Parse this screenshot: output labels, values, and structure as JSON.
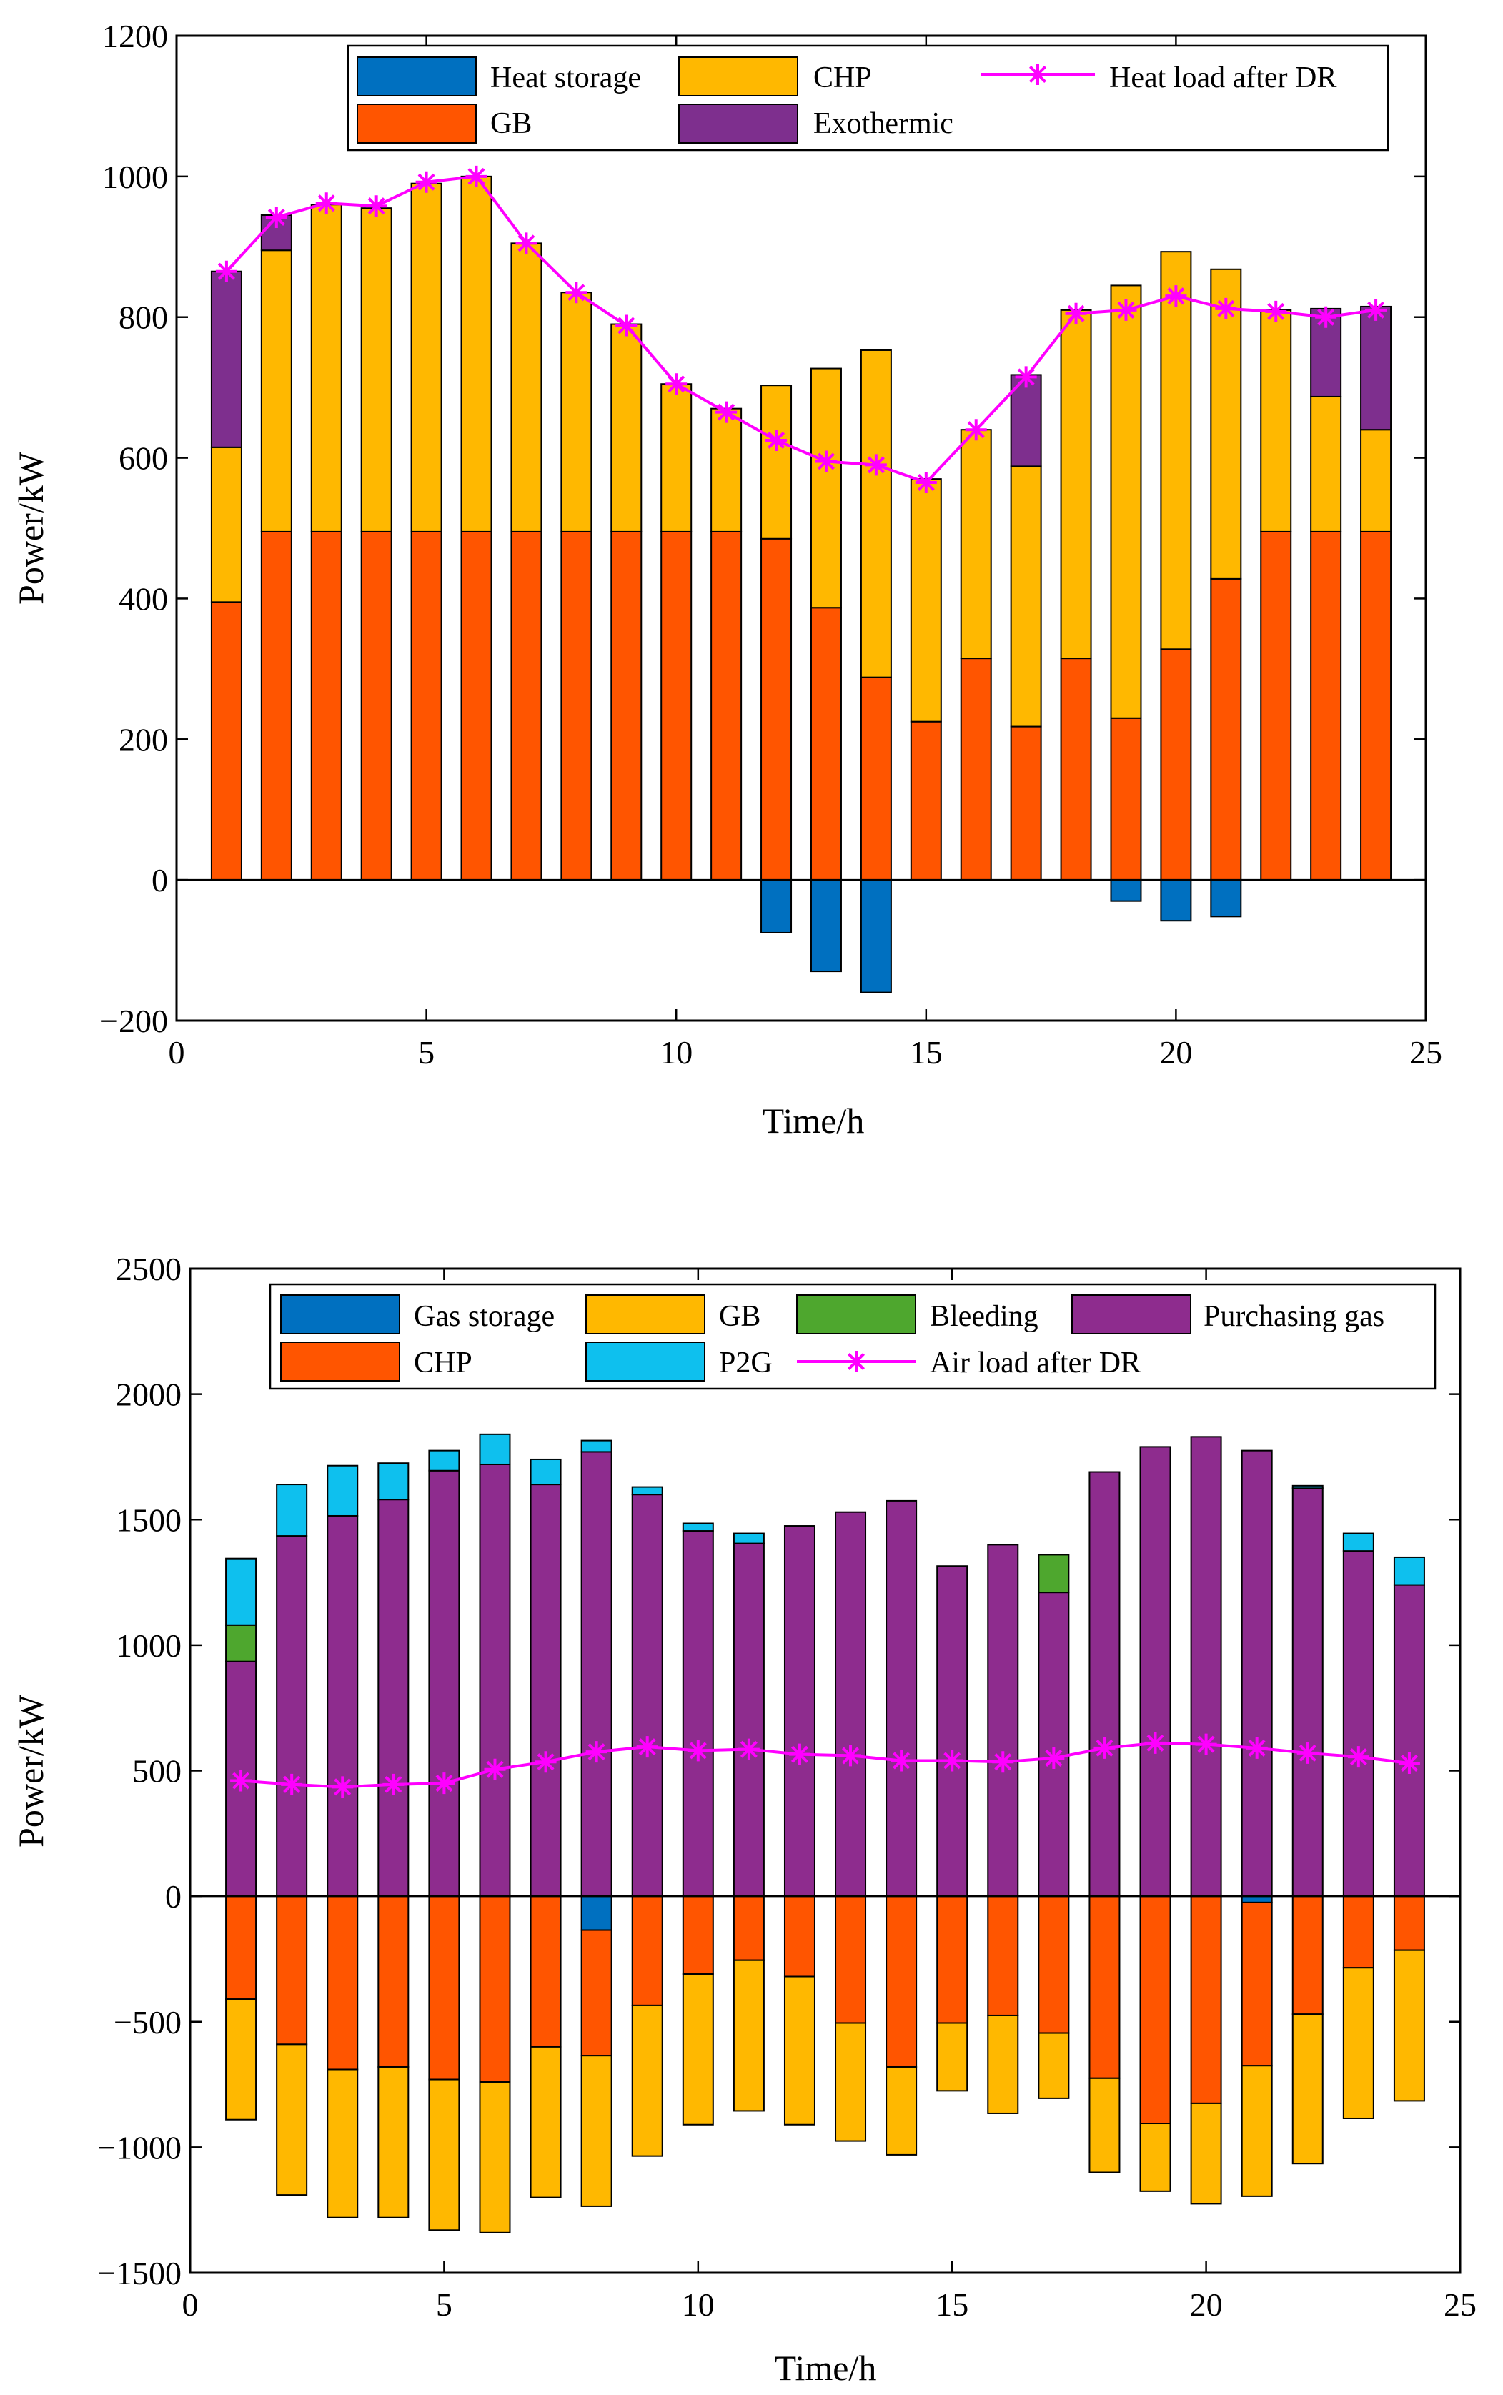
{
  "colors": {
    "heat_storage": "#0070c0",
    "gb_heat": "#ff5500",
    "chp_heat": "#ffb800",
    "exothermic": "#7e2f8e",
    "heat_line": "#ff00ff",
    "gas_storage": "#0070c0",
    "chp_gas": "#ff5500",
    "gb_gas": "#ffb800",
    "p2g": "#0ec0ee",
    "bleeding": "#4ea72e",
    "purchasing": "#8e2c8e",
    "gas_line": "#ff00ff"
  },
  "chart_data": [
    {
      "type": "bar",
      "stacked": true,
      "xlabel": "Time/h",
      "ylabel": "Power/kW",
      "xlim": [
        0,
        25
      ],
      "ylim": [
        -200,
        1200
      ],
      "xticks": [
        "0",
        "5",
        "10",
        "15",
        "20",
        "25"
      ],
      "yticks": [
        "−200",
        "0",
        "200",
        "400",
        "600",
        "800",
        "1000",
        "1200"
      ],
      "categories": [
        1,
        2,
        3,
        4,
        5,
        6,
        7,
        8,
        9,
        10,
        11,
        12,
        13,
        14,
        15,
        16,
        17,
        18,
        19,
        20,
        21,
        22,
        23,
        24
      ],
      "legend": {
        "heat_storage": "Heat storage",
        "gb": "GB",
        "chp": "CHP",
        "exothermic": "Exothermic",
        "line": "Heat load after DR"
      },
      "series": [
        {
          "key": "heat_storage",
          "name": "Heat storage",
          "values": [
            0,
            0,
            0,
            0,
            0,
            0,
            0,
            0,
            0,
            0,
            0,
            -75,
            -130,
            -160,
            0,
            0,
            0,
            0,
            -30,
            -58,
            -52,
            0,
            0,
            0
          ]
        },
        {
          "key": "gb",
          "name": "GB",
          "values": [
            395,
            495,
            495,
            495,
            495,
            495,
            495,
            495,
            495,
            495,
            495,
            485,
            387,
            288,
            225,
            315,
            218,
            315,
            230,
            328,
            428,
            495,
            495,
            495
          ]
        },
        {
          "key": "chp",
          "name": "CHP",
          "values": [
            220,
            400,
            465,
            460,
            495,
            505,
            410,
            340,
            295,
            210,
            175,
            218,
            340,
            465,
            345,
            325,
            370,
            495,
            615,
            565,
            440,
            315,
            192,
            145
          ]
        },
        {
          "key": "exothermic",
          "name": "Exothermic",
          "values": [
            250,
            50,
            0,
            0,
            0,
            0,
            0,
            0,
            0,
            0,
            0,
            0,
            0,
            0,
            0,
            0,
            130,
            0,
            0,
            0,
            0,
            0,
            125,
            175
          ]
        }
      ],
      "line": {
        "name": "Heat load after DR",
        "values": [
          865,
          942,
          962,
          958,
          992,
          1000,
          905,
          835,
          788,
          705,
          665,
          625,
          595,
          590,
          565,
          640,
          715,
          805,
          810,
          830,
          812,
          808,
          800,
          810
        ]
      }
    },
    {
      "type": "bar",
      "stacked": true,
      "xlabel": "Time/h",
      "ylabel": "Power/kW",
      "xlim": [
        0,
        25
      ],
      "ylim": [
        -1500,
        2500
      ],
      "xticks": [
        "0",
        "5",
        "10",
        "15",
        "20",
        "25"
      ],
      "yticks": [
        "−1500",
        "−1000",
        "−500",
        "0",
        "500",
        "1000",
        "1500",
        "2000",
        "2500"
      ],
      "categories": [
        1,
        2,
        3,
        4,
        5,
        6,
        7,
        8,
        9,
        10,
        11,
        12,
        13,
        14,
        15,
        16,
        17,
        18,
        19,
        20,
        21,
        22,
        23,
        24
      ],
      "legend": {
        "gas_storage": "Gas storage",
        "gb": "GB",
        "bleeding": "Bleeding",
        "purchasing": "Purchasing gas",
        "chp": "CHP",
        "p2g": "P2G",
        "line": "Air load after DR"
      },
      "series": [
        {
          "key": "gas_storage",
          "name": "Gas storage",
          "values": [
            0,
            0,
            0,
            0,
            0,
            0,
            0,
            -135,
            0,
            0,
            0,
            0,
            0,
            0,
            0,
            0,
            0,
            0,
            0,
            0,
            -25,
            0,
            0,
            0
          ]
        },
        {
          "key": "chp",
          "name": "CHP",
          "values": [
            -410,
            -590,
            -690,
            -680,
            -730,
            -740,
            -600,
            -500,
            -435,
            -310,
            -255,
            -320,
            -505,
            -680,
            -505,
            -475,
            -545,
            -725,
            -905,
            -825,
            -650,
            -470,
            -285,
            -215
          ]
        },
        {
          "key": "gb",
          "name": "GB",
          "values": [
            -480,
            -600,
            -590,
            -600,
            -600,
            -600,
            -600,
            -600,
            -600,
            -600,
            -600,
            -590,
            -470,
            -350,
            -270,
            -390,
            -260,
            -375,
            -270,
            -400,
            -520,
            -595,
            -600,
            -600
          ]
        },
        {
          "key": "purchasing",
          "name": "Purchasing gas",
          "values": [
            935,
            1435,
            1515,
            1580,
            1695,
            1720,
            1640,
            1770,
            1600,
            1455,
            1405,
            1475,
            1530,
            1575,
            1315,
            1400,
            1210,
            1690,
            1790,
            1830,
            1775,
            1625,
            1375,
            1240
          ]
        },
        {
          "key": "bleeding",
          "name": "Bleeding",
          "values": [
            145,
            0,
            0,
            0,
            0,
            0,
            0,
            0,
            0,
            0,
            0,
            0,
            0,
            0,
            0,
            0,
            150,
            0,
            0,
            0,
            0,
            0,
            0,
            0
          ]
        },
        {
          "key": "p2g",
          "name": "P2G",
          "values": [
            265,
            205,
            200,
            145,
            80,
            120,
            100,
            45,
            30,
            30,
            40,
            0,
            0,
            0,
            0,
            0,
            0,
            0,
            0,
            0,
            0,
            10,
            70,
            110
          ]
        }
      ],
      "line": {
        "name": "Air load after DR",
        "values": [
          460,
          445,
          435,
          445,
          450,
          505,
          535,
          575,
          595,
          580,
          585,
          565,
          560,
          540,
          540,
          535,
          550,
          590,
          610,
          605,
          590,
          570,
          555,
          530
        ]
      }
    }
  ]
}
